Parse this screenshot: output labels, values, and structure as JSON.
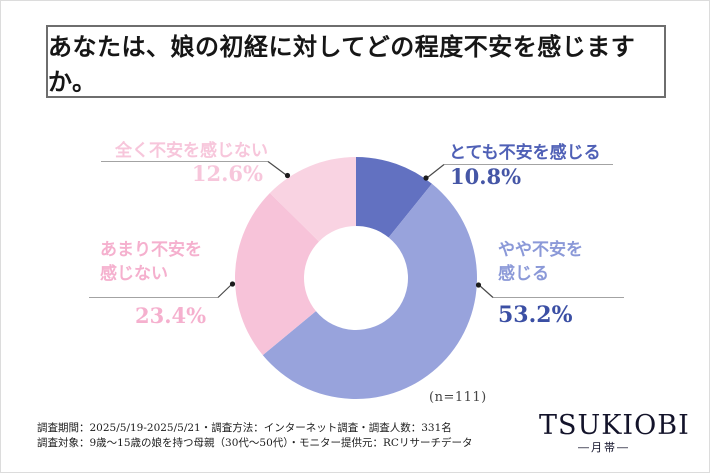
{
  "header": {
    "title": "あなたは、娘の初経に対してどの程度不安を感じますか。"
  },
  "chart_data": {
    "type": "pie",
    "subtype": "donut",
    "title": "あなたは、娘の初経に対してどの程度不安を感じますか。",
    "categories": [
      "とても不安を感じる",
      "やや不安を感じる",
      "あまり不安を感じない",
      "全く不安を感じない"
    ],
    "values": [
      10.8,
      53.2,
      23.4,
      12.6
    ],
    "unit": "%",
    "sample_size_label": "(n=111)",
    "start_angle_deg": 0,
    "direction": "clockwise",
    "slice_colors": [
      "#6271c1",
      "#98a3dc",
      "#f7c3d9",
      "#f9d3e2"
    ],
    "hole_color": "#ffffff",
    "legend_position": "callouts"
  },
  "callouts": {
    "totemo": {
      "label": "とても不安を感じる",
      "pct": "10.8%"
    },
    "yaya": {
      "label_line1": "やや不安を",
      "label_line2": "感じる",
      "pct": "53.2%"
    },
    "amari": {
      "label_line1": "あまり不安を",
      "label_line2": "感じない",
      "pct": "23.4%"
    },
    "zenkaku": {
      "label": "全く不安を感じない",
      "pct": "12.6%"
    }
  },
  "n_label": "(n=111)",
  "footer": {
    "line1": "調査期間：2025/5/19-2025/5/21・調査方法：インターネット調査・調査人数：331名",
    "line2": "調査対象：9歳～15歳の娘を持つ母親（30代～50代）・モニター提供元：RCリサーチデータ"
  },
  "logo": {
    "name": "TSUKIOBI",
    "subtitle": "―月帯―"
  },
  "colors": {
    "accent_dark_blue": "#4556a6",
    "accent_periwinkle": "#98a3dc",
    "accent_pink": "#f7c3d9",
    "accent_light_pink": "#f9d3e2",
    "leader_line": "#a3a3a3",
    "leader_elbow": "#4a4a4a"
  }
}
